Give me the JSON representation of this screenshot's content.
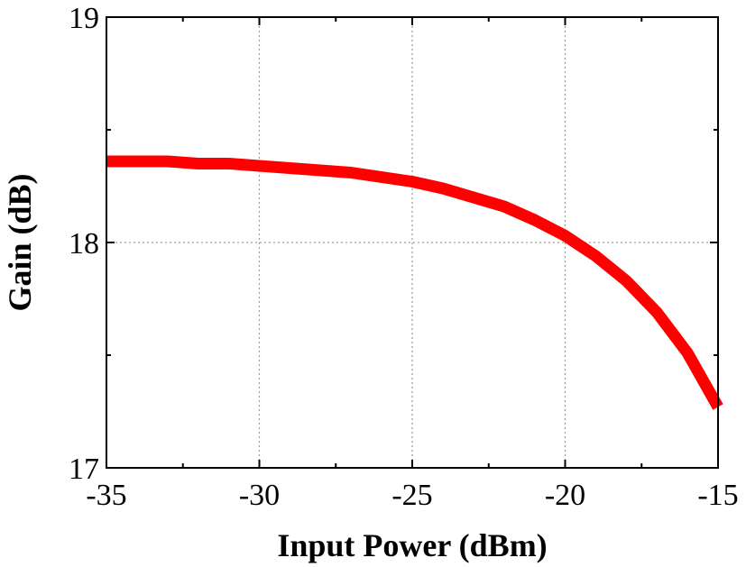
{
  "chart_data": {
    "type": "line",
    "title": "",
    "xlabel": "Input Power (dBm)",
    "ylabel": "Gain (dB)",
    "xlim": [
      -35,
      -15
    ],
    "ylim": [
      17,
      19
    ],
    "xticks": [
      -35,
      -30,
      -25,
      -20,
      -15
    ],
    "yticks": [
      17,
      18,
      19
    ],
    "x_tick_labels": [
      "-35",
      "-30",
      "-25",
      "-20",
      "-15"
    ],
    "y_tick_labels": [
      "17",
      "18",
      "19"
    ],
    "grid": true,
    "legend": "none",
    "series": [
      {
        "color": "#ff0000",
        "x": [
          -35,
          -34,
          -33,
          -32,
          -31,
          -30,
          -29,
          -28,
          -27,
          -26,
          -25,
          -24,
          -23,
          -22,
          -21,
          -20,
          -19,
          -18,
          -17,
          -16,
          -15
        ],
        "y": [
          18.36,
          18.36,
          18.36,
          18.35,
          18.35,
          18.34,
          18.33,
          18.32,
          18.31,
          18.29,
          18.27,
          18.24,
          18.2,
          18.16,
          18.1,
          18.03,
          17.94,
          17.83,
          17.69,
          17.51,
          17.27
        ]
      }
    ]
  }
}
